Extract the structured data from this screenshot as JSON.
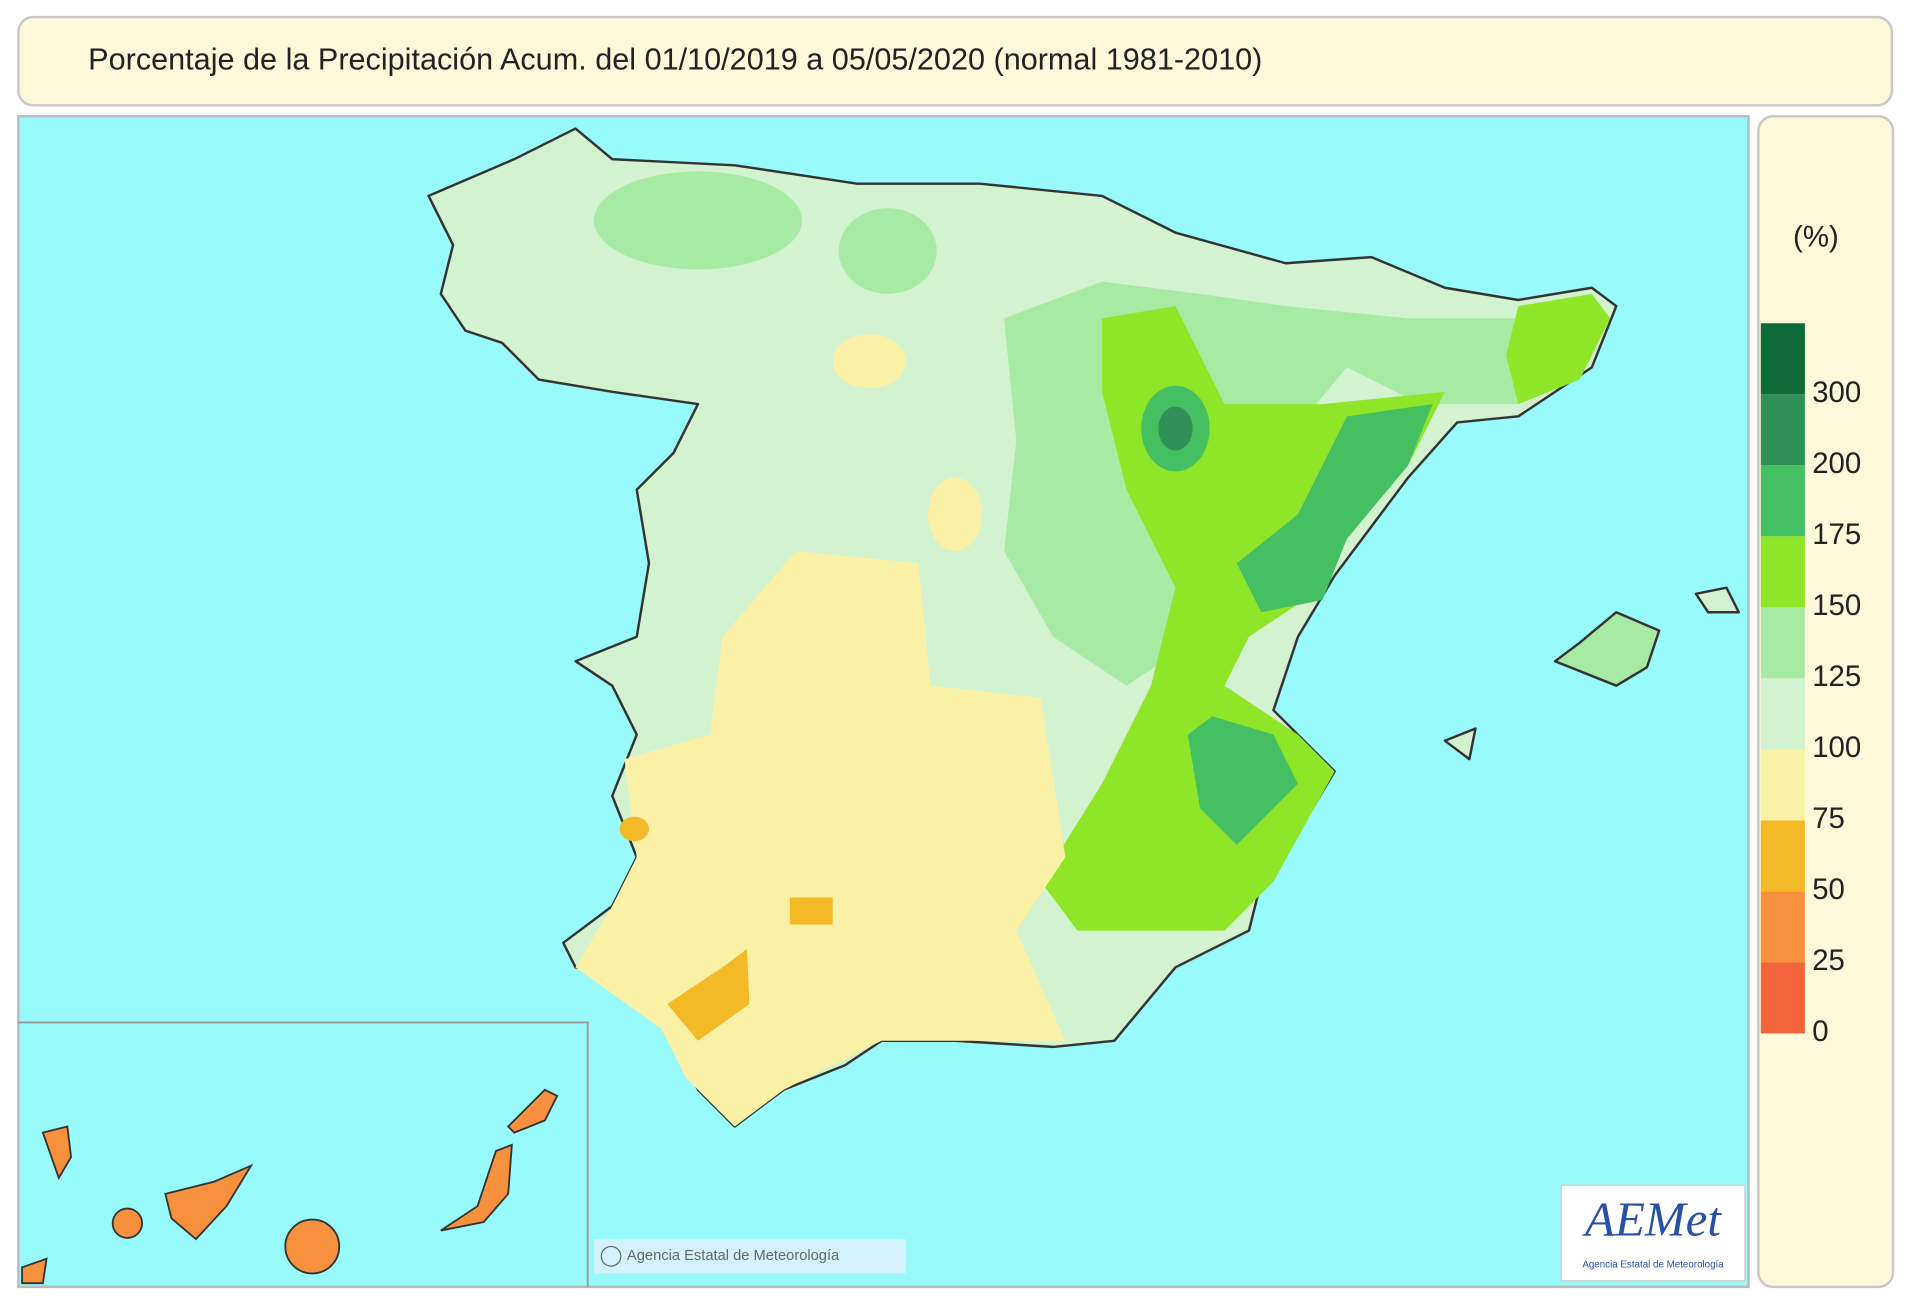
{
  "header": {
    "title": "Porcentaje de la Precipitación Acum. del 01/10/2019 a  05/05/2020  (normal 1981-2010)"
  },
  "legend": {
    "unit": "(%)",
    "ticks": [
      0,
      25,
      50,
      75,
      100,
      125,
      150,
      175,
      200,
      300
    ],
    "colors": [
      "#f4643c",
      "#f8913e",
      "#f4b927",
      "#fbf1a6",
      "#d3f2cf",
      "#a6eaa3",
      "#8fe628",
      "#44c062",
      "#2f9058",
      "#0b6a36"
    ]
  },
  "map": {
    "credit": "Agencia Estatal de Meteorología"
  },
  "logo": {
    "text": "AEMet",
    "subtitle": "Agencia Estatal de Meteorología"
  }
}
